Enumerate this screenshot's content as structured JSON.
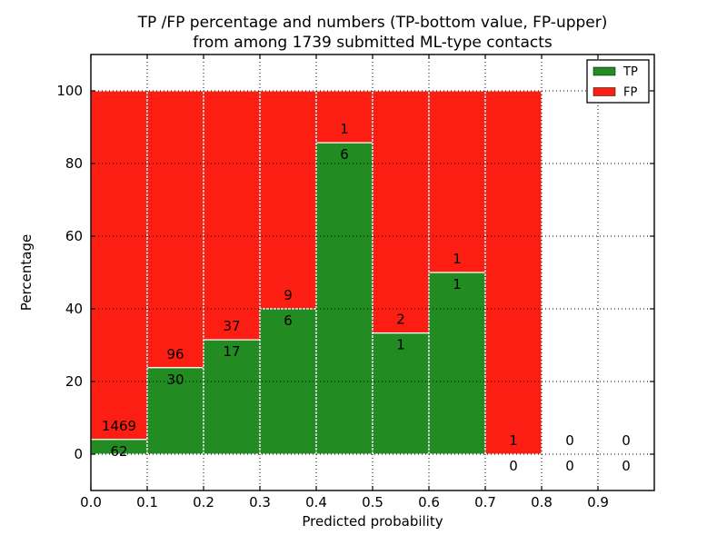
{
  "chart_data": {
    "type": "bar",
    "stacked": true,
    "normalized_to_percent": 100,
    "title_lines": [
      "TP /FP percentage and numbers (TP-bottom value, FP-upper)",
      "from among 1739 submitted ML-type contacts"
    ],
    "xlabel": "Predicted probability",
    "ylabel": "Percentage",
    "xlim": [
      0.0,
      1.0
    ],
    "ylim": [
      -10,
      110
    ],
    "xticks": [
      "0.0",
      "0.1",
      "0.2",
      "0.3",
      "0.4",
      "0.5",
      "0.6",
      "0.7",
      "0.8",
      "0.9"
    ],
    "yticks": [
      0,
      20,
      40,
      60,
      80,
      100
    ],
    "bin_width": 0.1,
    "grid": "dotted",
    "total_contacts": 1739,
    "bins": [
      {
        "x0": 0.0,
        "tp": 62,
        "fp": 1469,
        "tp_pct": 4.05
      },
      {
        "x0": 0.1,
        "tp": 30,
        "fp": 96,
        "tp_pct": 23.81
      },
      {
        "x0": 0.2,
        "tp": 17,
        "fp": 37,
        "tp_pct": 31.48
      },
      {
        "x0": 0.3,
        "tp": 6,
        "fp": 9,
        "tp_pct": 40.0
      },
      {
        "x0": 0.4,
        "tp": 6,
        "fp": 1,
        "tp_pct": 85.71
      },
      {
        "x0": 0.5,
        "tp": 1,
        "fp": 2,
        "tp_pct": 33.33
      },
      {
        "x0": 0.6,
        "tp": 1,
        "fp": 1,
        "tp_pct": 50.0
      },
      {
        "x0": 0.7,
        "tp": 0,
        "fp": 1,
        "tp_pct": 0.0
      },
      {
        "x0": 0.8,
        "tp": 0,
        "fp": 0,
        "tp_pct": null
      },
      {
        "x0": 0.9,
        "tp": 0,
        "fp": 0,
        "tp_pct": null
      }
    ],
    "legend": [
      {
        "label": "TP",
        "color": "#228b22"
      },
      {
        "label": "FP",
        "color": "#fc1d13"
      }
    ],
    "legend_position": "upper-right",
    "colors": {
      "tp": "#228b22",
      "fp": "#fc1d13",
      "bar_edge": "#ffffff",
      "axes": "#000000",
      "background": "#ffffff"
    }
  }
}
